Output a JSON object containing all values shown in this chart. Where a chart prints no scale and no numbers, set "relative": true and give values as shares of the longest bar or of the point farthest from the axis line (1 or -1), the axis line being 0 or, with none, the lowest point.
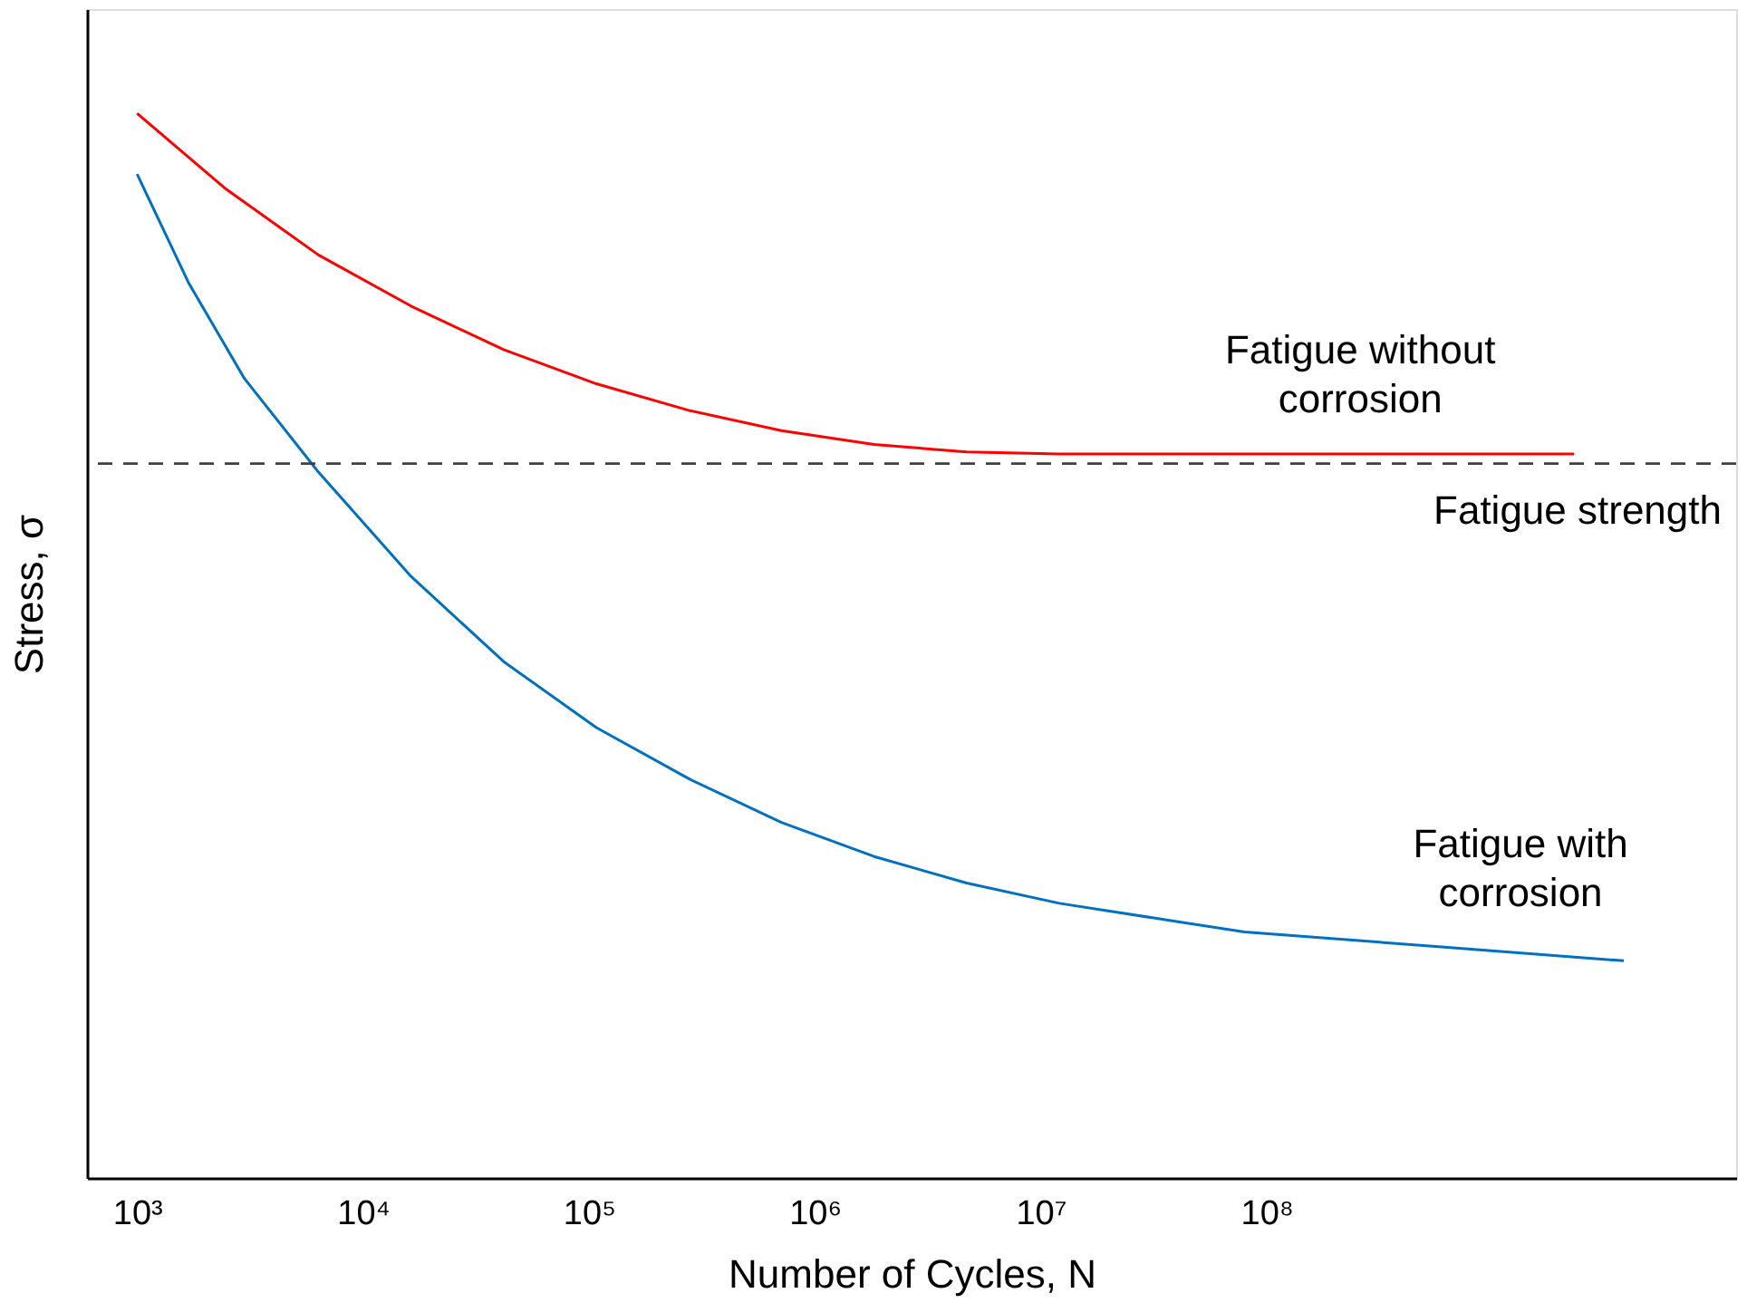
{
  "chart_data": {
    "type": "line",
    "relative": true,
    "xlabel": "Number of Cycles, N",
    "ylabel": "Stress, σ",
    "log": "x",
    "grid": false,
    "marker": "none",
    "line_style": "solid",
    "xlim": [
      600,
      12000000000
    ],
    "xticks": [
      {
        "value": 1000,
        "label": "10³"
      },
      {
        "value": 10000,
        "label": "10⁴"
      },
      {
        "value": 100000,
        "label": "10⁵"
      },
      {
        "value": 1000000,
        "label": "10⁶"
      },
      {
        "value": 10000000,
        "label": "10⁷"
      },
      {
        "value": 100000000,
        "label": "10⁸"
      }
    ],
    "ref_lines": [
      {
        "axis": "y",
        "value": 0.671,
        "label": "Fatigue strength",
        "color": "#404040",
        "line_style": "dashed"
      }
    ],
    "series": [
      {
        "name": "Fatigue without corrosion",
        "color": "#ff0000",
        "x": [
          1000,
          2473,
          6353,
          16330,
          41980,
          108000,
          277000,
          712000,
          1830000,
          4700000,
          12100000,
          79800000,
          2300000000
        ],
        "values": [
          1.0,
          0.929,
          0.867,
          0.819,
          0.778,
          0.746,
          0.721,
          0.702,
          0.689,
          0.682,
          0.68,
          0.68,
          0.68
        ]
      },
      {
        "name": "Fatigue with corrosion",
        "color": "#0070c0",
        "x": [
          1000,
          1698,
          2985,
          6353,
          16330,
          41980,
          108000,
          277000,
          712000,
          1830000,
          4700000,
          12100000,
          79800000,
          526000000,
          3820000000
        ],
        "values": [
          0.943,
          0.84,
          0.751,
          0.663,
          0.565,
          0.485,
          0.423,
          0.375,
          0.334,
          0.302,
          0.277,
          0.258,
          0.231,
          0.218,
          0.204
        ]
      }
    ]
  }
}
